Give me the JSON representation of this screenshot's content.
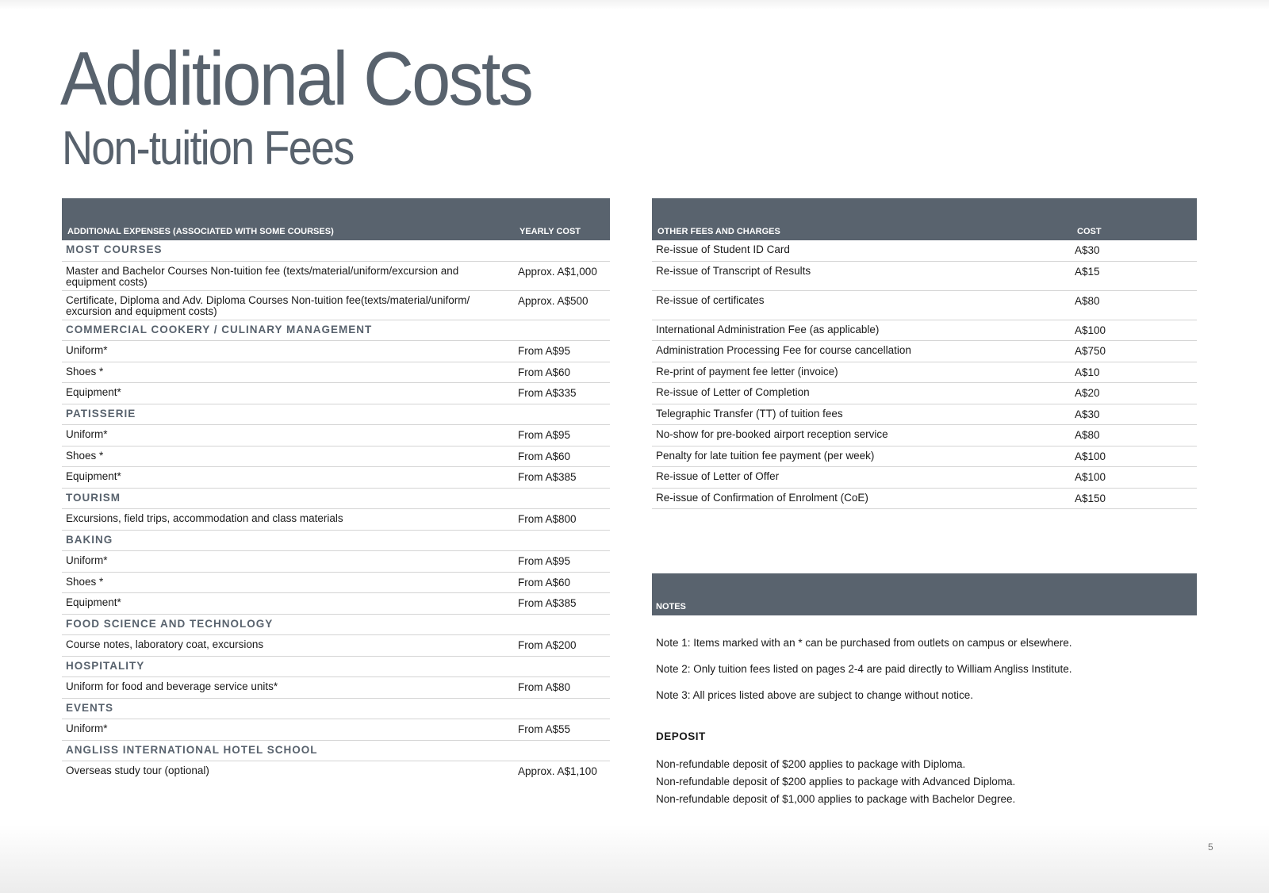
{
  "header": {
    "title": "Additional Costs",
    "subtitle": "Non-tuition Fees"
  },
  "colors": {
    "header_bg": "#59636e",
    "title": "#58626d"
  },
  "left_table": {
    "col1": "ADDITIONAL EXPENSES  (ASSOCIATED WITH SOME COURSES)",
    "col2": "YEARLY COST",
    "rows": [
      {
        "type": "section",
        "label": "MOST COURSES",
        "cost": ""
      },
      {
        "type": "item",
        "label": "Master and Bachelor Courses Non-tuition fee (texts/material/uniform/excursion and equipment costs)",
        "cost": "Approx. A$1,000",
        "tall": true
      },
      {
        "type": "item",
        "label": "Certificate, Diploma and Adv. Diploma Courses Non-tuition fee(texts/material/uniform/ excursion and equipment costs)",
        "cost": "Approx. A$500",
        "tall": true
      },
      {
        "type": "section",
        "label": "COMMERCIAL COOKERY / CULINARY MANAGEMENT",
        "cost": ""
      },
      {
        "type": "item",
        "label": "Uniform*",
        "cost": "From A$95"
      },
      {
        "type": "item",
        "label": "Shoes *",
        "cost": "From A$60"
      },
      {
        "type": "item",
        "label": "Equipment*",
        "cost": "From A$335"
      },
      {
        "type": "section",
        "label": "PATISSERIE",
        "cost": ""
      },
      {
        "type": "item",
        "label": "Uniform*",
        "cost": "From A$95"
      },
      {
        "type": "item",
        "label": "Shoes *",
        "cost": "From A$60"
      },
      {
        "type": "item",
        "label": "Equipment*",
        "cost": "From A$385"
      },
      {
        "type": "section",
        "label": "TOURISM",
        "cost": ""
      },
      {
        "type": "item",
        "label": "Excursions, field trips, accommodation and class materials",
        "cost": "From A$800"
      },
      {
        "type": "section",
        "label": "BAKING",
        "cost": ""
      },
      {
        "type": "item",
        "label": "Uniform*",
        "cost": "From A$95"
      },
      {
        "type": "item",
        "label": "Shoes *",
        "cost": "From A$60"
      },
      {
        "type": "item",
        "label": "Equipment*",
        "cost": "From A$385"
      },
      {
        "type": "section",
        "label": "FOOD SCIENCE AND TECHNOLOGY",
        "cost": ""
      },
      {
        "type": "item",
        "label": "Course notes, laboratory coat, excursions",
        "cost": "From A$200"
      },
      {
        "type": "section",
        "label": "HOSPITALITY",
        "cost": ""
      },
      {
        "type": "item",
        "label": "Uniform for food and beverage service units*",
        "cost": "From A$80"
      },
      {
        "type": "section",
        "label": "EVENTS",
        "cost": ""
      },
      {
        "type": "item",
        "label": "Uniform*",
        "cost": "From A$55"
      },
      {
        "type": "section",
        "label": "ANGLISS INTERNATIONAL HOTEL SCHOOL",
        "cost": ""
      },
      {
        "type": "item",
        "label": "Overseas study tour (optional)",
        "cost": "Approx. A$1,100",
        "last": true
      }
    ]
  },
  "right_table": {
    "col1": "OTHER FEES AND CHARGES",
    "col2": "COST",
    "rows": [
      {
        "label": "Re-issue of Student ID Card",
        "cost": "A$30"
      },
      {
        "label": "Re-issue of Transcript of Results",
        "cost": "A$15",
        "tall": true
      },
      {
        "label": "Re-issue of certificates",
        "cost": "A$80",
        "tall": true
      },
      {
        "label": "International Administration Fee (as applicable)",
        "cost": "A$100"
      },
      {
        "label": "Administration Processing Fee for course cancellation",
        "cost": "A$750"
      },
      {
        "label": "Re-print of payment fee letter (invoice)",
        "cost": "A$10"
      },
      {
        "label": "Re-issue of Letter of Completion",
        "cost": "A$20"
      },
      {
        "label": "Telegraphic Transfer (TT) of tuition fees",
        "cost": "A$30"
      },
      {
        "label": "No-show for pre-booked airport reception service",
        "cost": "A$80"
      },
      {
        "label": "Penalty for late tuition fee payment (per week)",
        "cost": "A$100"
      },
      {
        "label": "Re-issue of Letter of Offer",
        "cost": "A$100"
      },
      {
        "label": "Re-issue of Confirmation of Enrolment (CoE)",
        "cost": "A$150"
      }
    ]
  },
  "notes": {
    "header": "NOTES",
    "items": [
      "Note 1: Items marked with an * can be purchased from outlets on campus or elsewhere.",
      "Note 2: Only tuition fees listed on pages 2-4 are paid directly to William Angliss Institute.",
      "Note 3: All prices listed above are subject to change without notice."
    ]
  },
  "deposit": {
    "title": "DEPOSIT",
    "items": [
      "Non-refundable deposit of $200 applies to package with Diploma.",
      "Non-refundable deposit of $200 applies to package with Advanced Diploma.",
      "Non-refundable deposit of $1,000 applies to package with Bachelor Degree."
    ]
  },
  "page_number": "5"
}
